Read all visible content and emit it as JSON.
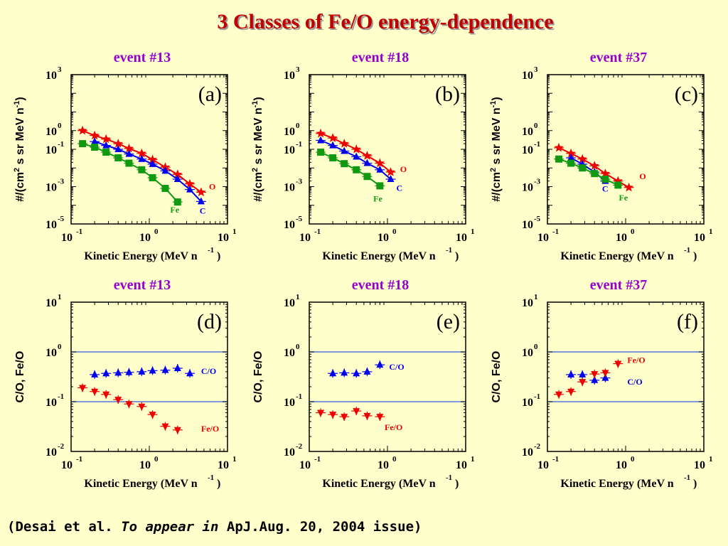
{
  "title": "3 Classes of Fe/O energy-dependence",
  "citation": {
    "prefix": "(Desai et al.",
    "italic": "To appear in",
    "suffix": "ApJ.Aug. 20, 2004 issue)"
  },
  "colors": {
    "Fe": "#119911",
    "C": "#0000EE",
    "O": "#EE0000",
    "title": "#C00000",
    "event": "#9900CC",
    "ref_line": "#5577DD"
  },
  "chart_data": [
    {
      "type": "line",
      "panel": "(a)",
      "title": "event #13",
      "xlabel": "Kinetic Energy (MeV n",
      "xlabel_exp": "-1",
      "xlabel_close": ")",
      "ylabel": "#/(cm",
      "ylabel_sup": "2",
      "ylabel_mid": " s sr MeV n",
      "ylabel_exp": "-1",
      "ylabel_close": ")",
      "xscale": "log",
      "yscale": "log",
      "xlim": [
        0.1,
        10
      ],
      "ylim": [
        1e-05,
        1000
      ],
      "xticks": [
        {
          "base": "10",
          "exp": "-1"
        },
        {
          "base": "10",
          "exp": "0"
        },
        {
          "base": "10",
          "exp": "1"
        }
      ],
      "yticks": [
        {
          "base": "10",
          "exp": "3"
        },
        {
          "base": "10",
          "exp": "0"
        },
        {
          "base": "10",
          "exp": "-1"
        },
        {
          "base": "10",
          "exp": "-3"
        },
        {
          "base": "10",
          "exp": "-5"
        }
      ],
      "series": [
        {
          "name": "O",
          "marker": "star",
          "x": [
            0.14,
            0.2,
            0.28,
            0.4,
            0.55,
            0.8,
            1.1,
            1.6,
            2.3,
            3.3,
            4.6
          ],
          "y": [
            1.0,
            0.55,
            0.35,
            0.2,
            0.11,
            0.06,
            0.028,
            0.011,
            0.0045,
            0.0014,
            0.0005
          ],
          "label_x": 5.8,
          "label_y": 0.0007
        },
        {
          "name": "C",
          "marker": "triangle-up",
          "x": [
            0.2,
            0.28,
            0.4,
            0.55,
            0.8,
            1.1,
            1.6,
            2.3,
            3.3,
            4.6
          ],
          "y": [
            0.26,
            0.16,
            0.1,
            0.056,
            0.03,
            0.016,
            0.007,
            0.0025,
            0.0007,
            0.00016
          ],
          "label_x": 4.4,
          "label_y": 3.5e-05
        },
        {
          "name": "Fe",
          "marker": "square",
          "x": [
            0.14,
            0.2,
            0.28,
            0.4,
            0.55,
            0.8,
            1.1,
            1.6,
            2.3
          ],
          "y": [
            0.2,
            0.13,
            0.07,
            0.035,
            0.018,
            0.008,
            0.003,
            0.0008,
            0.00015
          ],
          "label_x": 1.85,
          "label_y": 4e-05
        }
      ]
    },
    {
      "type": "line",
      "panel": "(b)",
      "title": "event #18",
      "xlabel": "Kinetic Energy (MeV n",
      "xlabel_exp": "-1",
      "xlabel_close": ")",
      "ylabel": "#/(cm",
      "ylabel_sup": "2",
      "ylabel_mid": " s sr MeV n",
      "ylabel_exp": "-1",
      "ylabel_close": ")",
      "xscale": "log",
      "yscale": "log",
      "xlim": [
        0.1,
        10
      ],
      "ylim": [
        1e-05,
        1000
      ],
      "xticks": [
        {
          "base": "10",
          "exp": "-1"
        },
        {
          "base": "10",
          "exp": "0"
        },
        {
          "base": "10",
          "exp": "1"
        }
      ],
      "yticks": [
        {
          "base": "10",
          "exp": "3"
        },
        {
          "base": "10",
          "exp": "0"
        },
        {
          "base": "10",
          "exp": "-1"
        },
        {
          "base": "10",
          "exp": "-3"
        },
        {
          "base": "10",
          "exp": "-5"
        }
      ],
      "series": [
        {
          "name": "O",
          "marker": "star",
          "x": [
            0.14,
            0.2,
            0.28,
            0.4,
            0.55,
            0.8,
            1.1
          ],
          "y": [
            0.7,
            0.4,
            0.2,
            0.1,
            0.045,
            0.018,
            0.006
          ],
          "label_x": 1.45,
          "label_y": 0.006
        },
        {
          "name": "C",
          "marker": "triangle-up",
          "x": [
            0.14,
            0.2,
            0.28,
            0.4,
            0.55,
            0.8,
            1.1
          ],
          "y": [
            0.3,
            0.16,
            0.08,
            0.04,
            0.018,
            0.008,
            0.0025
          ],
          "label_x": 1.3,
          "label_y": 0.0006
        },
        {
          "name": "Fe",
          "marker": "square",
          "x": [
            0.14,
            0.2,
            0.28,
            0.4,
            0.55,
            0.8
          ],
          "y": [
            0.07,
            0.035,
            0.017,
            0.008,
            0.0035,
            0.0011
          ],
          "label_x": 0.66,
          "label_y": 0.00016
        }
      ]
    },
    {
      "type": "line",
      "panel": "(c)",
      "title": "event #37",
      "xlabel": "Kinetic Energy (MeV n",
      "xlabel_exp": "-1",
      "xlabel_close": ")",
      "ylabel": "#/(cm",
      "ylabel_sup": "2",
      "ylabel_mid": " s sr MeV n",
      "ylabel_exp": "-1",
      "ylabel_close": ")",
      "xscale": "log",
      "yscale": "log",
      "xlim": [
        0.1,
        10
      ],
      "ylim": [
        1e-05,
        1000
      ],
      "xticks": [
        {
          "base": "10",
          "exp": "-1"
        },
        {
          "base": "10",
          "exp": "0"
        },
        {
          "base": "10",
          "exp": "1"
        }
      ],
      "yticks": [
        {
          "base": "10",
          "exp": "3"
        },
        {
          "base": "10",
          "exp": "0"
        },
        {
          "base": "10",
          "exp": "-1"
        },
        {
          "base": "10",
          "exp": "-3"
        },
        {
          "base": "10",
          "exp": "-5"
        }
      ],
      "series": [
        {
          "name": "O",
          "marker": "star",
          "x": [
            0.14,
            0.2,
            0.28,
            0.4,
            0.55,
            0.8,
            1.1
          ],
          "y": [
            0.12,
            0.06,
            0.03,
            0.013,
            0.005,
            0.002,
            0.0009
          ],
          "label_x": 1.5,
          "label_y": 0.0025
        },
        {
          "name": "C",
          "marker": "triangle-up",
          "x": [
            0.2,
            0.28,
            0.4,
            0.55
          ],
          "y": [
            0.035,
            0.016,
            0.006,
            0.002
          ],
          "label_x": 0.5,
          "label_y": 0.00055
        },
        {
          "name": "Fe",
          "marker": "square",
          "x": [
            0.14,
            0.2,
            0.28,
            0.4,
            0.55,
            0.8
          ],
          "y": [
            0.03,
            0.018,
            0.01,
            0.005,
            0.0025,
            0.0012
          ],
          "label_x": 0.82,
          "label_y": 0.00018
        }
      ]
    },
    {
      "type": "scatter",
      "panel": "(d)",
      "title": "event #13",
      "xlabel": "Kinetic Energy (MeV n",
      "xlabel_exp": "-1",
      "xlabel_close": ")",
      "ylabel": "C/O, Fe/O",
      "xscale": "log",
      "yscale": "log",
      "xlim": [
        0.1,
        10
      ],
      "ylim": [
        0.01,
        10
      ],
      "xticks": [
        {
          "base": "10",
          "exp": "-1"
        },
        {
          "base": "10",
          "exp": "0"
        },
        {
          "base": "10",
          "exp": "1"
        }
      ],
      "yticks": [
        {
          "base": "10",
          "exp": "1"
        },
        {
          "base": "10",
          "exp": "0"
        },
        {
          "base": "10",
          "exp": "-1"
        },
        {
          "base": "10",
          "exp": "-2"
        }
      ],
      "reference_lines_y": [
        1,
        0.1
      ],
      "series": [
        {
          "name": "C/O",
          "marker": "triangle-up",
          "x": [
            0.2,
            0.28,
            0.4,
            0.55,
            0.8,
            1.1,
            1.6,
            2.3,
            3.3
          ],
          "y": [
            0.35,
            0.37,
            0.38,
            0.39,
            0.4,
            0.42,
            0.43,
            0.47,
            0.37
          ],
          "label_x": 4.6,
          "label_y": 0.36
        },
        {
          "name": "Fe/O",
          "marker": "triangle-down",
          "x": [
            0.14,
            0.2,
            0.28,
            0.4,
            0.55,
            0.8,
            1.1,
            1.6,
            2.3
          ],
          "y": [
            0.19,
            0.16,
            0.14,
            0.11,
            0.09,
            0.08,
            0.055,
            0.032,
            0.027
          ],
          "label_x": 4.6,
          "label_y": 0.025
        }
      ]
    },
    {
      "type": "scatter",
      "panel": "(e)",
      "title": "event #18",
      "xlabel": "Kinetic Energy (MeV n",
      "xlabel_exp": "-1",
      "xlabel_close": ")",
      "ylabel": "C/O, Fe/O",
      "xscale": "log",
      "yscale": "log",
      "xlim": [
        0.1,
        10
      ],
      "ylim": [
        0.01,
        10
      ],
      "xticks": [
        {
          "base": "10",
          "exp": "-1"
        },
        {
          "base": "10",
          "exp": "0"
        },
        {
          "base": "10",
          "exp": "1"
        }
      ],
      "yticks": [
        {
          "base": "10",
          "exp": "1"
        },
        {
          "base": "10",
          "exp": "0"
        },
        {
          "base": "10",
          "exp": "-1"
        },
        {
          "base": "10",
          "exp": "-2"
        }
      ],
      "reference_lines_y": [
        1,
        0.1
      ],
      "series": [
        {
          "name": "C/O",
          "marker": "triangle-up",
          "x": [
            0.2,
            0.28,
            0.4,
            0.55,
            0.8
          ],
          "y": [
            0.37,
            0.38,
            0.37,
            0.4,
            0.55
          ],
          "label_x": 1.05,
          "label_y": 0.44
        },
        {
          "name": "Fe/O",
          "marker": "triangle-down",
          "x": [
            0.14,
            0.2,
            0.28,
            0.4,
            0.55,
            0.8
          ],
          "y": [
            0.06,
            0.055,
            0.05,
            0.065,
            0.052,
            0.05
          ],
          "label_x": 0.92,
          "label_y": 0.027
        }
      ]
    },
    {
      "type": "scatter",
      "panel": "(f)",
      "title": "event #37",
      "xlabel": "Kinetic Energy (MeV n",
      "xlabel_exp": "-1",
      "xlabel_close": ")",
      "ylabel": "C/O, Fe/O",
      "xscale": "log",
      "yscale": "log",
      "xlim": [
        0.1,
        10
      ],
      "ylim": [
        0.01,
        10
      ],
      "xticks": [
        {
          "base": "10",
          "exp": "-1"
        },
        {
          "base": "10",
          "exp": "0"
        },
        {
          "base": "10",
          "exp": "1"
        }
      ],
      "yticks": [
        {
          "base": "10",
          "exp": "1"
        },
        {
          "base": "10",
          "exp": "0"
        },
        {
          "base": "10",
          "exp": "-1"
        },
        {
          "base": "10",
          "exp": "-2"
        }
      ],
      "reference_lines_y": [
        1,
        0.1
      ],
      "series": [
        {
          "name": "C/O",
          "marker": "triangle-up",
          "x": [
            0.2,
            0.28,
            0.4,
            0.55
          ],
          "y": [
            0.35,
            0.35,
            0.27,
            0.3
          ],
          "label_x": 1.05,
          "label_y": 0.22
        },
        {
          "name": "Fe/O",
          "marker": "triangle-down",
          "x": [
            0.14,
            0.2,
            0.28,
            0.4,
            0.55,
            0.8
          ],
          "y": [
            0.14,
            0.16,
            0.25,
            0.36,
            0.38,
            0.58
          ],
          "label_x": 1.05,
          "label_y": 0.6
        }
      ]
    }
  ]
}
